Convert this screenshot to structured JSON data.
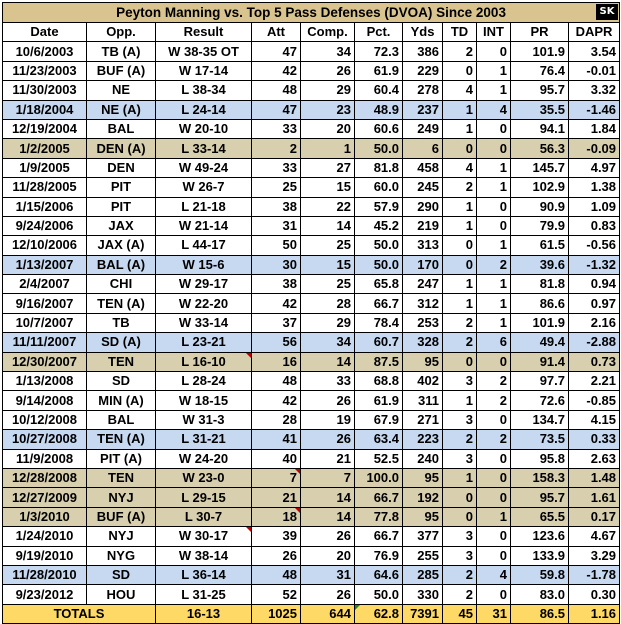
{
  "title": "Peyton Manning vs. Top 5 Pass Defenses (DVOA) Since 2003",
  "badge": "SK",
  "headers": [
    "Date",
    "Opp.",
    "Result",
    "Att",
    "Comp.",
    "Pct.",
    "Yds",
    "TD",
    "INT",
    "PR",
    "DAPR"
  ],
  "rows": [
    {
      "style": "w",
      "cells": [
        "10/6/2003",
        "TB (A)",
        "W 38-35 OT",
        "47",
        "34",
        "72.3",
        "386",
        "2",
        "0",
        "101.9",
        "3.54"
      ]
    },
    {
      "style": "w",
      "cells": [
        "11/23/2003",
        "BUF (A)",
        "W 17-14",
        "42",
        "26",
        "61.9",
        "229",
        "0",
        "1",
        "76.4",
        "-0.01"
      ]
    },
    {
      "style": "w",
      "cells": [
        "11/30/2003",
        "NE",
        "L 38-34",
        "48",
        "29",
        "60.4",
        "278",
        "4",
        "1",
        "95.7",
        "3.32"
      ]
    },
    {
      "style": "b",
      "cells": [
        "1/18/2004",
        "NE (A)",
        "L 24-14",
        "47",
        "23",
        "48.9",
        "237",
        "1",
        "4",
        "35.5",
        "-1.46"
      ]
    },
    {
      "style": "w",
      "cells": [
        "12/19/2004",
        "BAL",
        "W 20-10",
        "33",
        "20",
        "60.6",
        "249",
        "1",
        "0",
        "94.1",
        "1.84"
      ]
    },
    {
      "style": "t",
      "cells": [
        "1/2/2005",
        "DEN (A)",
        "L 33-14",
        "2",
        "1",
        "50.0",
        "6",
        "0",
        "0",
        "56.3",
        "-0.09"
      ]
    },
    {
      "style": "w",
      "cells": [
        "1/9/2005",
        "DEN",
        "W 49-24",
        "33",
        "27",
        "81.8",
        "458",
        "4",
        "1",
        "145.7",
        "4.97"
      ]
    },
    {
      "style": "w",
      "cells": [
        "11/28/2005",
        "PIT",
        "W 26-7",
        "25",
        "15",
        "60.0",
        "245",
        "2",
        "1",
        "102.9",
        "1.38"
      ]
    },
    {
      "style": "w",
      "cells": [
        "1/15/2006",
        "PIT",
        "L 21-18",
        "38",
        "22",
        "57.9",
        "290",
        "1",
        "0",
        "90.9",
        "1.09"
      ]
    },
    {
      "style": "w",
      "cells": [
        "9/24/2006",
        "JAX",
        "W 21-14",
        "31",
        "14",
        "45.2",
        "219",
        "1",
        "0",
        "79.9",
        "0.83"
      ]
    },
    {
      "style": "w",
      "cells": [
        "12/10/2006",
        "JAX (A)",
        "L 44-17",
        "50",
        "25",
        "50.0",
        "313",
        "0",
        "1",
        "61.5",
        "-0.56"
      ]
    },
    {
      "style": "b",
      "cells": [
        "1/13/2007",
        "BAL (A)",
        "W 15-6",
        "30",
        "15",
        "50.0",
        "170",
        "0",
        "2",
        "39.6",
        "-1.32"
      ]
    },
    {
      "style": "w",
      "cells": [
        "2/4/2007",
        "CHI",
        "W 29-17",
        "38",
        "25",
        "65.8",
        "247",
        "1",
        "1",
        "81.8",
        "0.94"
      ]
    },
    {
      "style": "w",
      "cells": [
        "9/16/2007",
        "TEN (A)",
        "W 22-20",
        "42",
        "28",
        "66.7",
        "312",
        "1",
        "1",
        "86.6",
        "0.97"
      ]
    },
    {
      "style": "w",
      "cells": [
        "10/7/2007",
        "TB",
        "W 33-14",
        "37",
        "29",
        "78.4",
        "253",
        "2",
        "1",
        "101.9",
        "2.16"
      ]
    },
    {
      "style": "b",
      "cells": [
        "11/11/2007",
        "SD (A)",
        "L 23-21",
        "56",
        "34",
        "60.7",
        "328",
        "2",
        "6",
        "49.4",
        "-2.88"
      ]
    },
    {
      "style": "t",
      "cells": [
        "12/30/2007",
        "TEN",
        "L 16-10",
        "16",
        "14",
        "87.5",
        "95",
        "0",
        "0",
        "91.4",
        "0.73"
      ]
    },
    {
      "style": "w",
      "cells": [
        "1/13/2008",
        "SD",
        "L 28-24",
        "48",
        "33",
        "68.8",
        "402",
        "3",
        "2",
        "97.7",
        "2.21"
      ]
    },
    {
      "style": "w",
      "cells": [
        "9/14/2008",
        "MIN (A)",
        "W 18-15",
        "42",
        "26",
        "61.9",
        "311",
        "1",
        "2",
        "72.6",
        "-0.85"
      ]
    },
    {
      "style": "w",
      "cells": [
        "10/12/2008",
        "BAL",
        "W 31-3",
        "28",
        "19",
        "67.9",
        "271",
        "3",
        "0",
        "134.7",
        "4.15"
      ]
    },
    {
      "style": "b",
      "cells": [
        "10/27/2008",
        "TEN (A)",
        "L 31-21",
        "41",
        "26",
        "63.4",
        "223",
        "2",
        "2",
        "73.5",
        "0.33"
      ]
    },
    {
      "style": "w",
      "cells": [
        "11/9/2008",
        "PIT (A)",
        "W 24-20",
        "40",
        "21",
        "52.5",
        "240",
        "3",
        "0",
        "95.8",
        "2.63"
      ]
    },
    {
      "style": "t",
      "cells": [
        "12/28/2008",
        "TEN",
        "W 23-0",
        "7",
        "7",
        "100.0",
        "95",
        "1",
        "0",
        "158.3",
        "1.48"
      ]
    },
    {
      "style": "t",
      "cells": [
        "12/27/2009",
        "NYJ",
        "L 29-15",
        "21",
        "14",
        "66.7",
        "192",
        "0",
        "0",
        "95.7",
        "1.61"
      ]
    },
    {
      "style": "t",
      "cells": [
        "1/3/2010",
        "BUF (A)",
        "L 30-7",
        "18",
        "14",
        "77.8",
        "95",
        "0",
        "1",
        "65.5",
        "0.17"
      ]
    },
    {
      "style": "w",
      "cells": [
        "1/24/2010",
        "NYJ",
        "W 30-17",
        "39",
        "26",
        "66.7",
        "377",
        "3",
        "0",
        "123.6",
        "4.67"
      ]
    },
    {
      "style": "w",
      "cells": [
        "9/19/2010",
        "NYG",
        "W 38-14",
        "26",
        "20",
        "76.9",
        "255",
        "3",
        "0",
        "133.9",
        "3.29"
      ]
    },
    {
      "style": "b",
      "cells": [
        "11/28/2010",
        "SD",
        "L 36-14",
        "48",
        "31",
        "64.6",
        "285",
        "2",
        "4",
        "59.8",
        "-1.78"
      ]
    },
    {
      "style": "w",
      "cells": [
        "9/23/2012",
        "HOU",
        "L 31-25",
        "52",
        "26",
        "50.0",
        "330",
        "2",
        "0",
        "83.0",
        "0.30"
      ]
    }
  ],
  "totals": [
    "TOTALS",
    "16-13",
    "1025",
    "644",
    "62.8",
    "7391",
    "45",
    "31",
    "86.5",
    "1.16"
  ],
  "colors": {
    "title": "#d9c48f",
    "blue_row": "#c6d9f1",
    "tan_row": "#d8cfae",
    "totals_row": "#ffd966"
  }
}
